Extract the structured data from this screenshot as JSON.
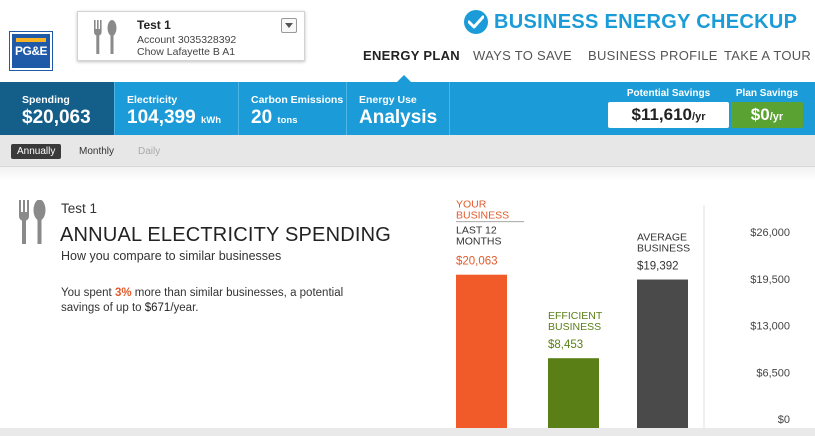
{
  "app": {
    "title": "BUSINESS ENERGY CHECKUP",
    "logo_text": "PG&E"
  },
  "account": {
    "name": "Test 1",
    "number": "Account 3035328392",
    "location": "Chow Lafayette B A1"
  },
  "nav": {
    "items": [
      "ENERGY PLAN",
      "WAYS TO SAVE",
      "BUSINESS PROFILE",
      "TAKE A TOUR"
    ],
    "active": "ENERGY PLAN"
  },
  "metrics": {
    "spending": {
      "label": "Spending",
      "value": "$20,063"
    },
    "electricity": {
      "label": "Electricity",
      "value": "104,399",
      "unit": "kWh"
    },
    "carbon": {
      "label": "Carbon Emissions",
      "value": "20",
      "unit": "tons"
    },
    "energy_use": {
      "label": "Energy Use",
      "value": "Analysis"
    }
  },
  "savings": {
    "potential": {
      "label": "Potential Savings",
      "value": "$11,610",
      "unit": "/yr"
    },
    "plan": {
      "label": "Plan Savings",
      "value": "$0",
      "unit": "/yr"
    }
  },
  "periods": {
    "items": [
      "Annually",
      "Monthly",
      "Daily"
    ],
    "active": "Annually"
  },
  "content": {
    "business_name": "Test 1",
    "title": "ANNUAL ELECTRICITY SPENDING",
    "subtitle": "How you compare to similar businesses",
    "summary": {
      "part1": "You spent ",
      "percent": "3%",
      "part2": " more than similar businesses, a potential savings of up to ",
      "amount": "$671",
      "part3": "/year."
    }
  },
  "colors": {
    "brand_blue": "#1b9bd7",
    "dark_blue": "#145e8a",
    "your_business": "#f15a29",
    "efficient": "#5a7f16",
    "average": "#4a4a4a",
    "plan_green": "#5aa332"
  },
  "icons": [
    "fork-knife-icon",
    "checkmark-circle-icon",
    "chevron-down-icon"
  ],
  "chart_data": {
    "type": "bar",
    "ylim": [
      0,
      26000
    ],
    "yticks": [
      {
        "value": 0,
        "label": "$0"
      },
      {
        "value": 6500,
        "label": "$6,500"
      },
      {
        "value": 13000,
        "label": "$13,000"
      },
      {
        "value": 19500,
        "label": "$19,500"
      },
      {
        "value": 26000,
        "label": "$26,000"
      }
    ],
    "bars": [
      {
        "name_lines": [
          "YOUR",
          "BUSINESS"
        ],
        "sub_lines": [
          "LAST 12",
          "MONTHS"
        ],
        "value": 20063,
        "label": "$20,063",
        "color": "#f15a29",
        "label_color": "#e25a2b"
      },
      {
        "name_lines": [
          "EFFICIENT",
          "BUSINESS"
        ],
        "sub_lines": [],
        "value": 8453,
        "label": "$8,453",
        "color": "#5a7f16",
        "label_color": "#5a7f16"
      },
      {
        "name_lines": [
          "AVERAGE",
          "BUSINESS"
        ],
        "sub_lines": [],
        "value": 19392,
        "label": "$19,392",
        "color": "#4a4a4a",
        "label_color": "#333333"
      }
    ]
  }
}
